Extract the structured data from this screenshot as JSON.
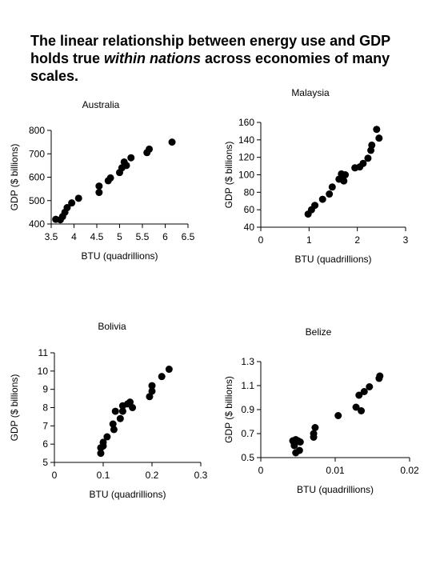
{
  "headline": {
    "part1": "The linear relationship between energy use and GDP holds true ",
    "emphasis": "within nations",
    "part2": " across economies of many scales."
  },
  "chart_data": [
    {
      "id": "australia",
      "type": "scatter",
      "title": "Australia",
      "xlabel": "BTU (quadrillions)",
      "ylabel": "GDP ($ billions)",
      "xlim": [
        3.5,
        6.5
      ],
      "ylim": [
        400,
        800
      ],
      "xticks": [
        "3.5",
        "4",
        "4.5",
        "5",
        "5.5",
        "6",
        "6.5"
      ],
      "yticks": [
        "400",
        "500",
        "600",
        "700",
        "800"
      ],
      "xtick_values": [
        3.5,
        4,
        4.5,
        5,
        5.5,
        6,
        6.5
      ],
      "ytick_values": [
        400,
        500,
        600,
        700,
        800
      ],
      "points": [
        [
          3.6,
          420
        ],
        [
          3.7,
          418
        ],
        [
          3.75,
          432
        ],
        [
          3.8,
          450
        ],
        [
          3.85,
          470
        ],
        [
          3.95,
          490
        ],
        [
          4.1,
          510
        ],
        [
          4.55,
          535
        ],
        [
          4.55,
          562
        ],
        [
          4.75,
          585
        ],
        [
          4.8,
          597
        ],
        [
          5.0,
          620
        ],
        [
          5.05,
          640
        ],
        [
          5.1,
          665
        ],
        [
          5.15,
          650
        ],
        [
          5.25,
          683
        ],
        [
          5.6,
          705
        ],
        [
          5.65,
          720
        ],
        [
          6.15,
          750
        ]
      ]
    },
    {
      "id": "malaysia",
      "type": "scatter",
      "title": "Malaysia",
      "xlabel": "BTU (quadrillions)",
      "ylabel": "GDP ($ billions)",
      "xlim": [
        0,
        3
      ],
      "ylim": [
        40,
        160
      ],
      "xticks": [
        "0",
        "1",
        "2",
        "3"
      ],
      "yticks": [
        "40",
        "60",
        "80",
        "100",
        "120",
        "140",
        "160"
      ],
      "xtick_values": [
        0,
        1,
        2,
        3
      ],
      "ytick_values": [
        40,
        60,
        80,
        100,
        120,
        140,
        160
      ],
      "points": [
        [
          0.98,
          55
        ],
        [
          1.05,
          60
        ],
        [
          1.12,
          65
        ],
        [
          1.28,
          72
        ],
        [
          1.42,
          78
        ],
        [
          1.48,
          86
        ],
        [
          1.62,
          95
        ],
        [
          1.68,
          98
        ],
        [
          1.72,
          93
        ],
        [
          1.75,
          100
        ],
        [
          1.67,
          101
        ],
        [
          1.95,
          108
        ],
        [
          2.05,
          109
        ],
        [
          2.12,
          113
        ],
        [
          2.22,
          119
        ],
        [
          2.28,
          128
        ],
        [
          2.3,
          134
        ],
        [
          2.4,
          152
        ],
        [
          2.45,
          142
        ]
      ]
    },
    {
      "id": "bolivia",
      "type": "scatter",
      "title": "Bolivia",
      "xlabel": "BTU (quadrillions)",
      "ylabel": "GDP ($ billions)",
      "xlim": [
        0,
        0.3
      ],
      "ylim": [
        5,
        11
      ],
      "xticks": [
        "0",
        "0.1",
        "0.2",
        "0.3"
      ],
      "yticks": [
        "5",
        "6",
        "7",
        "8",
        "9",
        "10",
        "11"
      ],
      "xtick_values": [
        0,
        0.1,
        0.2,
        0.3
      ],
      "ytick_values": [
        5,
        6,
        7,
        8,
        9,
        10,
        11
      ],
      "points": [
        [
          0.095,
          5.5
        ],
        [
          0.095,
          5.8
        ],
        [
          0.1,
          6.1
        ],
        [
          0.1,
          5.9
        ],
        [
          0.108,
          6.4
        ],
        [
          0.122,
          6.8
        ],
        [
          0.12,
          7.1
        ],
        [
          0.125,
          7.8
        ],
        [
          0.135,
          7.4
        ],
        [
          0.14,
          7.8
        ],
        [
          0.14,
          8.1
        ],
        [
          0.15,
          8.2
        ],
        [
          0.155,
          8.3
        ],
        [
          0.16,
          8.0
        ],
        [
          0.195,
          8.6
        ],
        [
          0.2,
          8.9
        ],
        [
          0.2,
          9.2
        ],
        [
          0.22,
          9.7
        ],
        [
          0.235,
          10.1
        ]
      ]
    },
    {
      "id": "belize",
      "type": "scatter",
      "title": "Belize",
      "xlabel": "BTU (quadrillions)",
      "ylabel": "GDP ($ billions)",
      "xlim": [
        0,
        0.02
      ],
      "ylim": [
        0.5,
        1.3
      ],
      "xticks": [
        "0",
        "0.01",
        "0.02"
      ],
      "yticks": [
        "0.5",
        "0.7",
        "0.9",
        "1.1",
        "1.3"
      ],
      "xtick_values": [
        0,
        0.01,
        0.02
      ],
      "ytick_values": [
        0.5,
        0.7,
        0.9,
        1.1,
        1.3
      ],
      "points": [
        [
          0.0043,
          0.64
        ],
        [
          0.0045,
          0.62
        ],
        [
          0.0045,
          0.6
        ],
        [
          0.0047,
          0.65
        ],
        [
          0.005,
          0.64
        ],
        [
          0.0053,
          0.63
        ],
        [
          0.0047,
          0.54
        ],
        [
          0.0052,
          0.56
        ],
        [
          0.0071,
          0.67
        ],
        [
          0.0071,
          0.7
        ],
        [
          0.0073,
          0.75
        ],
        [
          0.0104,
          0.85
        ],
        [
          0.0128,
          0.92
        ],
        [
          0.0132,
          1.02
        ],
        [
          0.0135,
          0.89
        ],
        [
          0.0139,
          1.05
        ],
        [
          0.0146,
          1.09
        ],
        [
          0.0159,
          1.16
        ],
        [
          0.016,
          1.18
        ]
      ]
    }
  ]
}
